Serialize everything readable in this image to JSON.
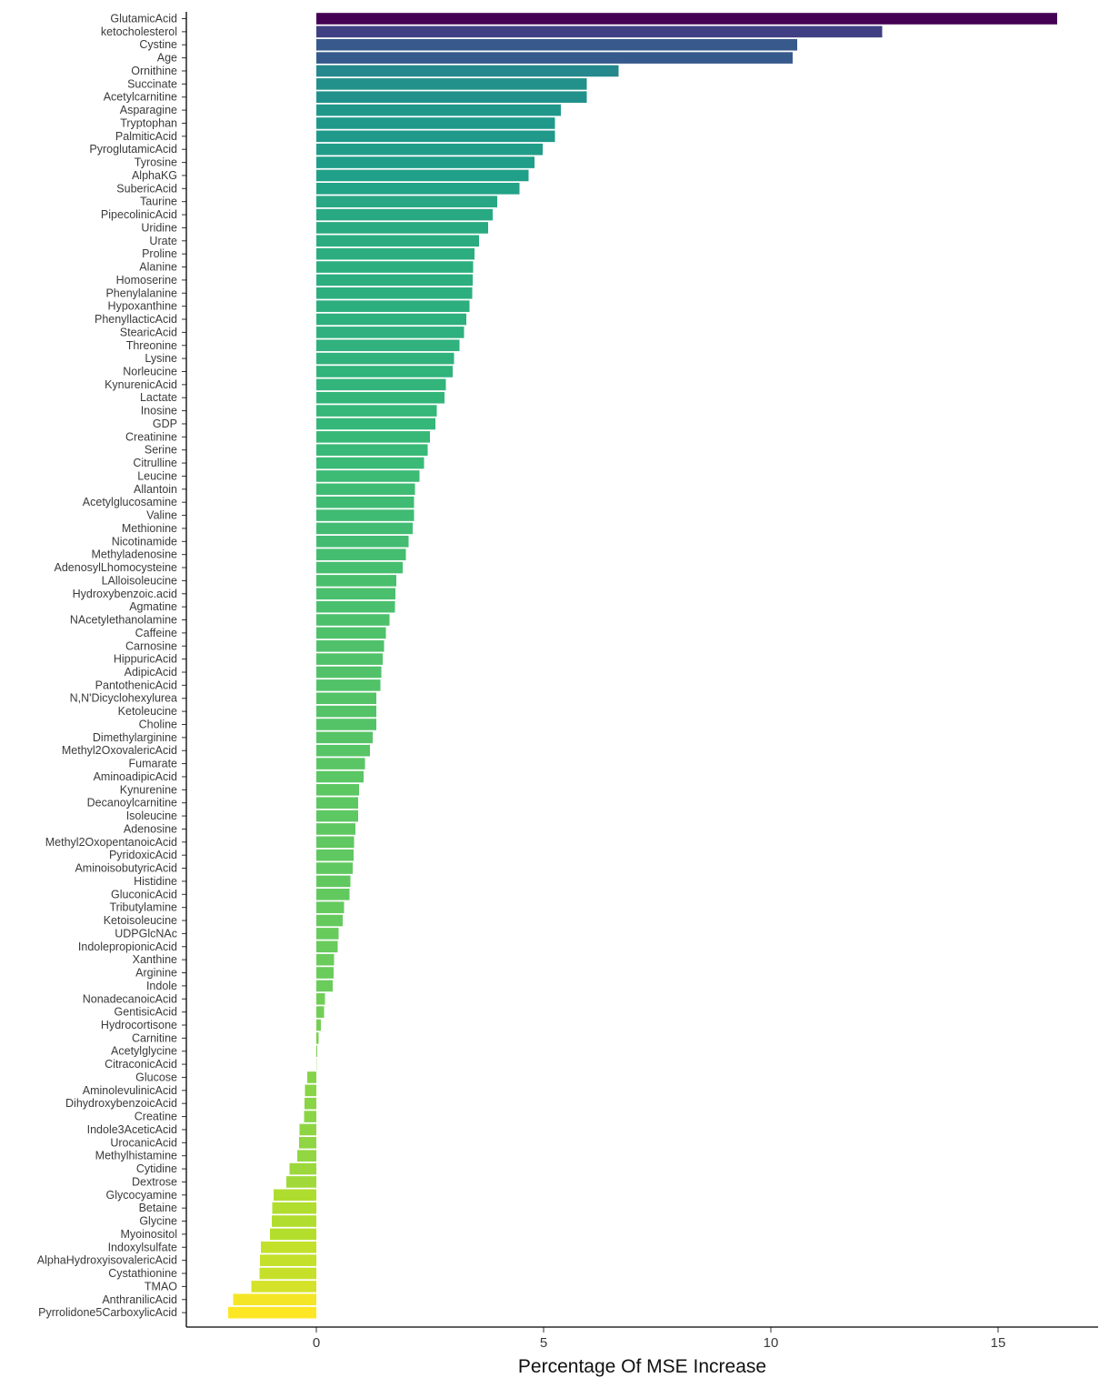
{
  "chart_data": {
    "type": "bar",
    "orientation": "horizontal",
    "xlabel": "Percentage Of MSE Increase",
    "ylabel": "",
    "xlim": [
      -2.9,
      17.2
    ],
    "xticks": [
      0,
      5,
      10,
      15
    ],
    "grid": false,
    "legend": "none",
    "color_scale": "viridis",
    "categories": [
      "GlutamicAcid",
      "ketocholesterol",
      "Cystine",
      "Age",
      "Ornithine",
      "Succinate",
      "Acetylcarnitine",
      "Asparagine",
      "Tryptophan",
      "PalmiticAcid",
      "PyroglutamicAcid",
      "Tyrosine",
      "AlphaKG",
      "SubericAcid",
      "Taurine",
      "PipecolinicAcid",
      "Uridine",
      "Urate",
      "Proline",
      "Alanine",
      "Homoserine",
      "Phenylalanine",
      "Hypoxanthine",
      "PhenyllacticAcid",
      "StearicAcid",
      "Threonine",
      "Lysine",
      "Norleucine",
      "KynurenicAcid",
      "Lactate",
      "Inosine",
      "GDP",
      "Creatinine",
      "Serine",
      "Citrulline",
      "Leucine",
      "Allantoin",
      "Acetylglucosamine",
      "Valine",
      "Methionine",
      "Nicotinamide",
      "Methyladenosine",
      "AdenosylLhomocysteine",
      "LAlloisoleucine",
      "Hydroxybenzoic.acid",
      "Agmatine",
      "NAcetylethanolamine",
      "Caffeine",
      "Carnosine",
      "HippuricAcid",
      "AdipicAcid",
      "PantothenicAcid",
      "N,N'Dicyclohexylurea",
      "Ketoleucine",
      "Choline",
      "Dimethylarginine",
      "Methyl2OxovalericAcid",
      "Fumarate",
      "AminoadipicAcid",
      "Kynurenine",
      "Decanoylcarnitine",
      "Isoleucine",
      "Adenosine",
      "Methyl2OxopentanoicAcid",
      "PyridoxicAcid",
      "AminoisobutyricAcid",
      "Histidine",
      "GluconicAcid",
      "Tributylamine",
      "Ketoisoleucine",
      "UDPGlcNAc",
      "IndolepropionicAcid",
      "Xanthine",
      "Arginine",
      "Indole",
      "NonadecanoicAcid",
      "GentisicAcid",
      "Hydrocortisone",
      "Carnitine",
      "Acetylglycine",
      "CitraconicAcid",
      "Glucose",
      "AminolevulinicAcid",
      "DihydroxybenzoicAcid",
      "Creatine",
      "Indole3AceticAcid",
      "UrocanicAcid",
      "Methylhistamine",
      "Cytidine",
      "Dextrose",
      "Glycocyamine",
      "Betaine",
      "Glycine",
      "Myoinositol",
      "Indoxylsulfate",
      "AlphaHydroxyisovalericAcid",
      "Cystathionine",
      "TMAO",
      "AnthranilicAcid",
      "Pyrrolidone5CarboxylicAcid"
    ],
    "values": [
      16.3,
      12.45,
      10.58,
      10.48,
      6.65,
      5.95,
      5.95,
      5.38,
      5.25,
      5.25,
      4.98,
      4.8,
      4.67,
      4.47,
      3.98,
      3.88,
      3.78,
      3.58,
      3.48,
      3.45,
      3.44,
      3.43,
      3.37,
      3.3,
      3.25,
      3.15,
      3.03,
      3.0,
      2.85,
      2.82,
      2.65,
      2.62,
      2.5,
      2.45,
      2.37,
      2.27,
      2.17,
      2.15,
      2.15,
      2.12,
      2.03,
      1.97,
      1.9,
      1.76,
      1.74,
      1.73,
      1.61,
      1.53,
      1.49,
      1.46,
      1.43,
      1.41,
      1.32,
      1.32,
      1.32,
      1.24,
      1.18,
      1.07,
      1.04,
      0.94,
      0.92,
      0.92,
      0.86,
      0.83,
      0.82,
      0.8,
      0.75,
      0.73,
      0.61,
      0.58,
      0.49,
      0.47,
      0.39,
      0.38,
      0.36,
      0.19,
      0.17,
      0.1,
      0.05,
      0.02,
      0.0,
      -0.2,
      -0.25,
      -0.26,
      -0.27,
      -0.37,
      -0.38,
      -0.42,
      -0.59,
      -0.66,
      -0.94,
      -0.97,
      -0.98,
      -1.02,
      -1.22,
      -1.24,
      -1.25,
      -1.43,
      -1.83,
      -1.94
    ]
  }
}
